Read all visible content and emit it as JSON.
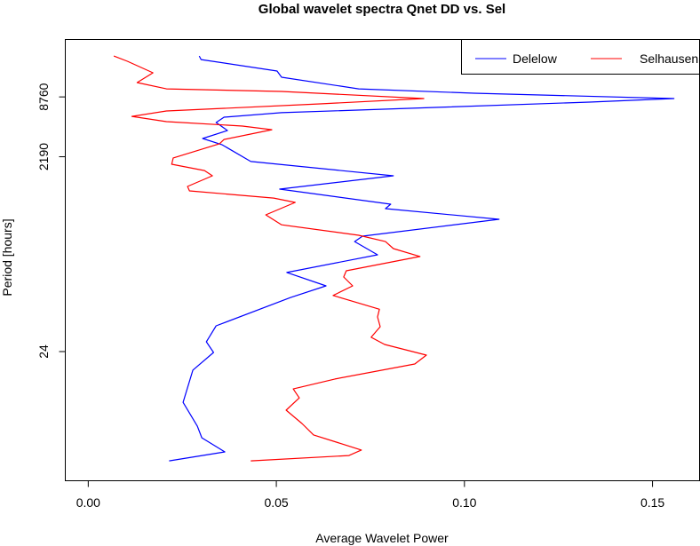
{
  "chart_data": {
    "type": "line",
    "title": "Global wavelet spectra  Qnet DD vs. Sel",
    "xlabel": "Average Wavelet Power",
    "ylabel": "Period [hours]",
    "xlim": [
      -0.0061,
      0.1625
    ],
    "yscale": "log2",
    "x_ticks": [
      0.0,
      0.05,
      0.1,
      0.15
    ],
    "x_tick_labels": [
      "0.00",
      "0.05",
      "0.10",
      "0.15"
    ],
    "y_ticks": [
      8760,
      2190,
      24
    ],
    "y_tick_labels": [
      "8760",
      "2190",
      "24"
    ],
    "grid": false,
    "legend_position": "top-right",
    "series": [
      {
        "name": "Delelow",
        "color": "#0000ff",
        "points": [
          [
            0.0295,
            22600
          ],
          [
            0.03,
            20800
          ],
          [
            0.0502,
            15960
          ],
          [
            0.0514,
            13830
          ],
          [
            0.0719,
            10550
          ],
          [
            0.1026,
            9540
          ],
          [
            0.1557,
            8430
          ],
          [
            0.1333,
            7770
          ],
          [
            0.0922,
            6860
          ],
          [
            0.0514,
            6080
          ],
          [
            0.0361,
            5470
          ],
          [
            0.034,
            4840
          ],
          [
            0.037,
            4020
          ],
          [
            0.0304,
            3340
          ],
          [
            0.0356,
            2890
          ],
          [
            0.0432,
            1960
          ],
          [
            0.0811,
            1410
          ],
          [
            0.0509,
            1035
          ],
          [
            0.0804,
            730
          ],
          [
            0.079,
            658
          ],
          [
            0.1092,
            514
          ],
          [
            0.0729,
            348
          ],
          [
            0.0708,
            307
          ],
          [
            0.0769,
            226
          ],
          [
            0.0528,
            150
          ],
          [
            0.0632,
            110
          ],
          [
            0.0538,
            84
          ],
          [
            0.034,
            43.6
          ],
          [
            0.0314,
            30.1
          ],
          [
            0.0333,
            23.5
          ],
          [
            0.0278,
            15.6
          ],
          [
            0.0252,
            7.4
          ],
          [
            0.029,
            4.27
          ],
          [
            0.0302,
            3.26
          ],
          [
            0.0363,
            2.35
          ],
          [
            0.0215,
            1.91
          ]
        ]
      },
      {
        "name": "Selhausen",
        "color": "#ff0000",
        "points": [
          [
            0.0068,
            22600
          ],
          [
            0.0104,
            20000
          ],
          [
            0.0172,
            15300
          ],
          [
            0.013,
            12200
          ],
          [
            0.0208,
            10550
          ],
          [
            0.0514,
            9940
          ],
          [
            0.0892,
            8430
          ],
          [
            0.0616,
            7460
          ],
          [
            0.0208,
            6320
          ],
          [
            0.0116,
            5580
          ],
          [
            0.0208,
            4940
          ],
          [
            0.041,
            4460
          ],
          [
            0.0488,
            4100
          ],
          [
            0.0361,
            3270
          ],
          [
            0.0349,
            2960
          ],
          [
            0.0226,
            2130
          ],
          [
            0.0222,
            1840
          ],
          [
            0.0309,
            1590
          ],
          [
            0.033,
            1410
          ],
          [
            0.0264,
            1100
          ],
          [
            0.0269,
            993
          ],
          [
            0.0493,
            840
          ],
          [
            0.055,
            760
          ],
          [
            0.0472,
            570
          ],
          [
            0.0514,
            453
          ],
          [
            0.0719,
            355
          ],
          [
            0.079,
            307
          ],
          [
            0.0811,
            261
          ],
          [
            0.0882,
            217
          ],
          [
            0.0686,
            156
          ],
          [
            0.0679,
            135
          ],
          [
            0.0703,
            110
          ],
          [
            0.0651,
            88
          ],
          [
            0.0774,
            64
          ],
          [
            0.0769,
            53.5
          ],
          [
            0.0776,
            42.7
          ],
          [
            0.0752,
            33.4
          ],
          [
            0.0788,
            28.3
          ],
          [
            0.0899,
            22.1
          ],
          [
            0.0868,
            18.0
          ],
          [
            0.0656,
            12.7
          ],
          [
            0.0545,
            10.1
          ],
          [
            0.0561,
            8.2
          ],
          [
            0.0526,
            6.17
          ],
          [
            0.0568,
            4.54
          ],
          [
            0.0599,
            3.48
          ],
          [
            0.0726,
            2.45
          ],
          [
            0.0693,
            2.16
          ],
          [
            0.0432,
            1.91
          ]
        ]
      }
    ]
  }
}
